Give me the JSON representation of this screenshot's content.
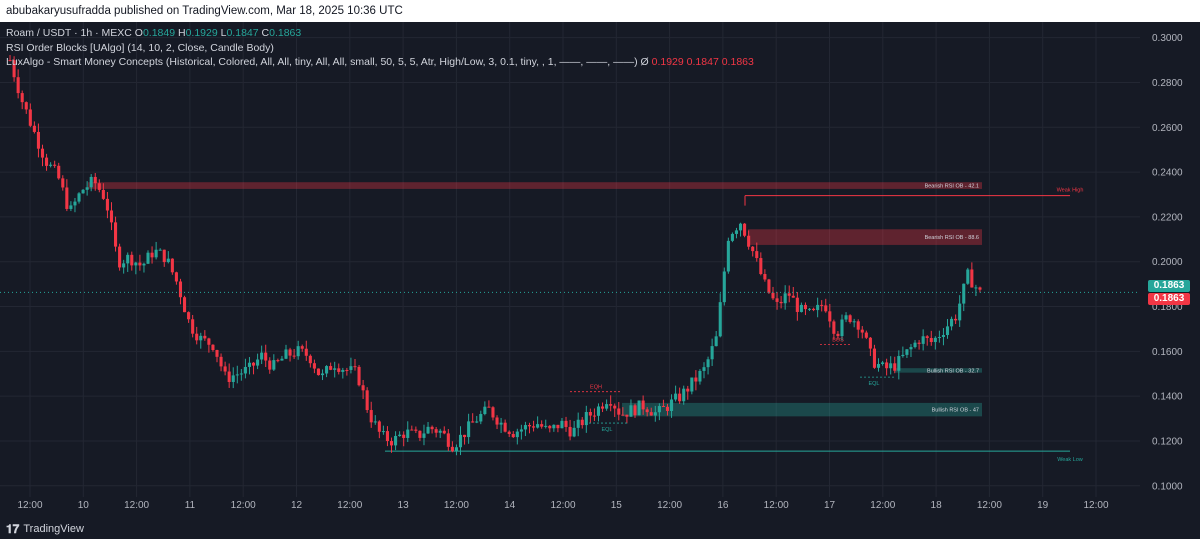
{
  "header": {
    "published_text": "abubakaryusufradda published on TradingView.com, Mar 18, 2025 10:36 UTC"
  },
  "legend": {
    "symbol": "Roam / USDT · 1h · MEXC",
    "o_label": "O",
    "o_value": "0.1849",
    "h_label": "H",
    "h_value": "0.1929",
    "l_label": "L",
    "l_value": "0.1847",
    "c_label": "C",
    "c_value": "0.1863",
    "indicator1": "RSI Order Blocks [UAlgo] (14, 10, 2, Close, Candle Body)",
    "indicator2": "LuxAlgo - Smart Money Concepts (Historical, Colored, All, All, tiny, All, All, small, 50, 5, 5, Atr, High/Low, 3, 0.1, tiny, , 1, ——, ——, ——)",
    "indicator2_symbol": "Ø",
    "indicator2_v1": "0.1929",
    "indicator2_v2": "0.1847",
    "indicator2_v3": "0.1863"
  },
  "price_tags": {
    "tag1": "0.1863",
    "tag2": "0.1863"
  },
  "footer": {
    "brand": "TradingView"
  },
  "colors": {
    "up": "#26a69a",
    "down": "#f23645",
    "bg": "#161a25",
    "grid": "#232733",
    "bear_zone": "#f2364555",
    "bull_zone": "#26a69a55"
  },
  "chart_data": {
    "type": "candlestick",
    "symbol": "Roam / USDT",
    "interval": "1h",
    "exchange": "MEXC",
    "ylim": [
      0.095,
      0.307
    ],
    "y_ticks": [
      "0.3000",
      "0.2800",
      "0.2600",
      "0.2400",
      "0.2200",
      "0.2000",
      "0.1800",
      "0.1600",
      "0.1400",
      "0.1200",
      "0.1000"
    ],
    "y_tick_values": [
      0.3,
      0.28,
      0.26,
      0.24,
      0.22,
      0.2,
      0.18,
      0.16,
      0.14,
      0.12,
      0.1
    ],
    "x_ticks": [
      "12:00",
      "10",
      "12:00",
      "11",
      "12:00",
      "12",
      "12:00",
      "13",
      "12:00",
      "14",
      "12:00",
      "15",
      "12:00",
      "16",
      "12:00",
      "17",
      "12:00",
      "18",
      "12:00",
      "19",
      "12:00"
    ],
    "last_price": 0.1863,
    "ohlc_path": [
      0.29,
      0.272,
      0.258,
      0.245,
      0.238,
      0.222,
      0.232,
      0.236,
      0.228,
      0.2,
      0.202,
      0.198,
      0.205,
      0.202,
      0.19,
      0.172,
      0.165,
      0.163,
      0.148,
      0.15,
      0.152,
      0.158,
      0.153,
      0.158,
      0.16,
      0.158,
      0.148,
      0.155,
      0.152,
      0.15,
      0.132,
      0.122,
      0.12,
      0.124,
      0.122,
      0.126,
      0.124,
      0.118,
      0.124,
      0.13,
      0.134,
      0.128,
      0.124,
      0.126,
      0.128,
      0.124,
      0.128,
      0.124,
      0.13,
      0.134,
      0.14,
      0.132,
      0.134,
      0.136,
      0.132,
      0.136,
      0.14,
      0.146,
      0.152,
      0.166,
      0.212,
      0.218,
      0.205,
      0.19,
      0.18,
      0.186,
      0.178,
      0.176,
      0.182,
      0.168,
      0.176,
      0.172,
      0.156,
      0.152,
      0.154,
      0.16,
      0.166,
      0.164,
      0.17,
      0.176,
      0.194,
      0.186
    ],
    "zones": [
      {
        "label": "Bearish RSI OB",
        "value": "- 42.1",
        "type": "bearish",
        "top": 0.2355,
        "bottom": 0.2325
      },
      {
        "label": "Bearish RSI OB",
        "value": "- 88.6",
        "type": "bearish",
        "top": 0.2145,
        "bottom": 0.2075
      },
      {
        "label": "Bullish RSI OB",
        "value": "- 32.7",
        "type": "bullish",
        "top": 0.1525,
        "bottom": 0.1505
      },
      {
        "label": "Bullish RSI OB",
        "value": "- 47",
        "type": "bullish",
        "top": 0.137,
        "bottom": 0.131
      }
    ],
    "levels": [
      {
        "label": "Weak High",
        "value": 0.2295,
        "type": "bearish"
      },
      {
        "label": "Weak Low",
        "value": 0.1155,
        "type": "bullish"
      }
    ],
    "annotations": [
      {
        "label": "EQH",
        "type": "bearish"
      },
      {
        "label": "EQL",
        "type": "bullish"
      },
      {
        "label": "BOS",
        "type": "bearish"
      },
      {
        "label": "EQL",
        "type": "bullish"
      }
    ]
  }
}
